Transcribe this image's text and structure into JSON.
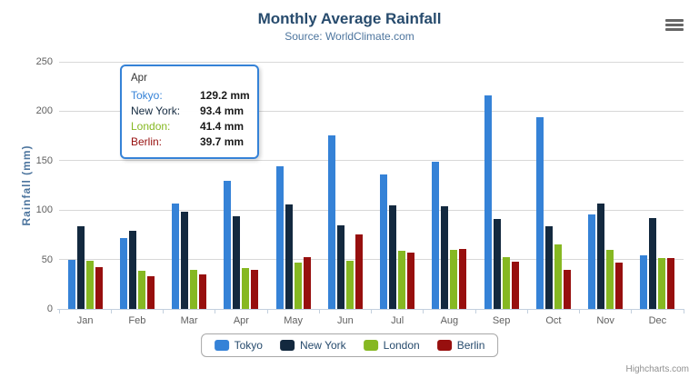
{
  "header": {
    "title": "Monthly Average Rainfall",
    "subtitle": "Source: WorldClimate.com"
  },
  "chart_data": {
    "type": "bar",
    "title": "Monthly Average Rainfall",
    "subtitle": "Source: WorldClimate.com",
    "categories": [
      "Jan",
      "Feb",
      "Mar",
      "Apr",
      "May",
      "Jun",
      "Jul",
      "Aug",
      "Sep",
      "Oct",
      "Nov",
      "Dec"
    ],
    "series": [
      {
        "name": "Tokyo",
        "color": "#3582d7",
        "values": [
          49.9,
          71.5,
          106.4,
          129.2,
          144.0,
          176.0,
          135.6,
          148.5,
          216.4,
          194.1,
          95.6,
          54.4
        ]
      },
      {
        "name": "New York",
        "color": "#13293f",
        "values": [
          83.6,
          78.8,
          98.5,
          93.4,
          106.0,
          84.5,
          105.0,
          104.3,
          91.2,
          83.5,
          106.6,
          92.3
        ]
      },
      {
        "name": "London",
        "color": "#86b822",
        "values": [
          48.9,
          38.8,
          39.3,
          41.4,
          47.0,
          48.3,
          59.0,
          59.6,
          52.4,
          65.2,
          59.3,
          51.2
        ]
      },
      {
        "name": "Berlin",
        "color": "#970f0e",
        "values": [
          42.4,
          33.2,
          34.5,
          39.7,
          52.6,
          75.5,
          57.4,
          60.4,
          47.6,
          39.1,
          46.8,
          51.1
        ]
      }
    ],
    "xlabel": "",
    "ylabel": "Rainfall (mm)",
    "ylim": [
      0,
      250
    ],
    "yticks": [
      0,
      50,
      100,
      150,
      200,
      250
    ],
    "grid": true,
    "legend_position": "bottom",
    "unit": "mm"
  },
  "tooltip": {
    "header": "Apr",
    "rows": [
      {
        "label": "Tokyo:",
        "value": "129.2 mm",
        "color": "#3582d7"
      },
      {
        "label": "New York:",
        "value": "93.4 mm",
        "color": "#13293f"
      },
      {
        "label": "London:",
        "value": "41.4 mm",
        "color": "#86b822"
      },
      {
        "label": "Berlin:",
        "value": "39.7 mm",
        "color": "#970f0e"
      }
    ]
  },
  "credits": {
    "label": "Highcharts.com"
  },
  "colors": {
    "title": "#274b6d",
    "subtitle": "#4d759e",
    "axis_labels": "#606060",
    "gridline": "#d8d8d8",
    "axis_line": "#c3d0de",
    "legend_text": "#274b6d",
    "credits_text": "#909090",
    "tooltip_border": "#3582d7"
  }
}
